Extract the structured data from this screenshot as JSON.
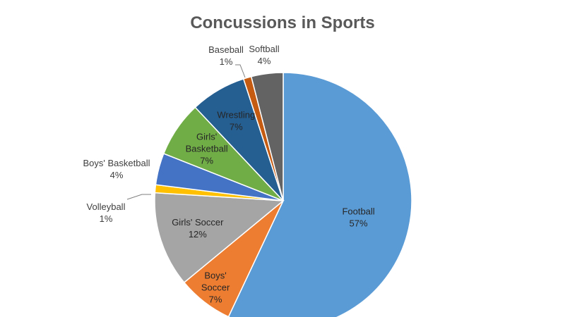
{
  "chart_data": {
    "type": "pie",
    "title": "Concussions in Sports",
    "start_angle_deg": 0,
    "direction": "clockwise",
    "slices": [
      {
        "name": "Football",
        "value": 57,
        "label": "57%",
        "color": "#5B9BD5"
      },
      {
        "name": "Boys' Soccer",
        "value": 7,
        "label": "7%",
        "color": "#ED7D31"
      },
      {
        "name": "Girls' Soccer",
        "value": 12,
        "label": "12%",
        "color": "#A5A5A5"
      },
      {
        "name": "Volleyball",
        "value": 1,
        "label": "1%",
        "color": "#FFC000"
      },
      {
        "name": "Boys' Basketball",
        "value": 4,
        "label": "4%",
        "color": "#4472C4"
      },
      {
        "name": "Girls' Basketball",
        "value": 7,
        "label": "7%",
        "color": "#70AD47"
      },
      {
        "name": "Wrestling",
        "value": 7,
        "label": "7%",
        "color": "#255E91"
      },
      {
        "name": "Baseball",
        "value": 1,
        "label": "1%",
        "color": "#C55A11"
      },
      {
        "name": "Softball",
        "value": 4,
        "label": "4%",
        "color": "#636363"
      }
    ]
  }
}
